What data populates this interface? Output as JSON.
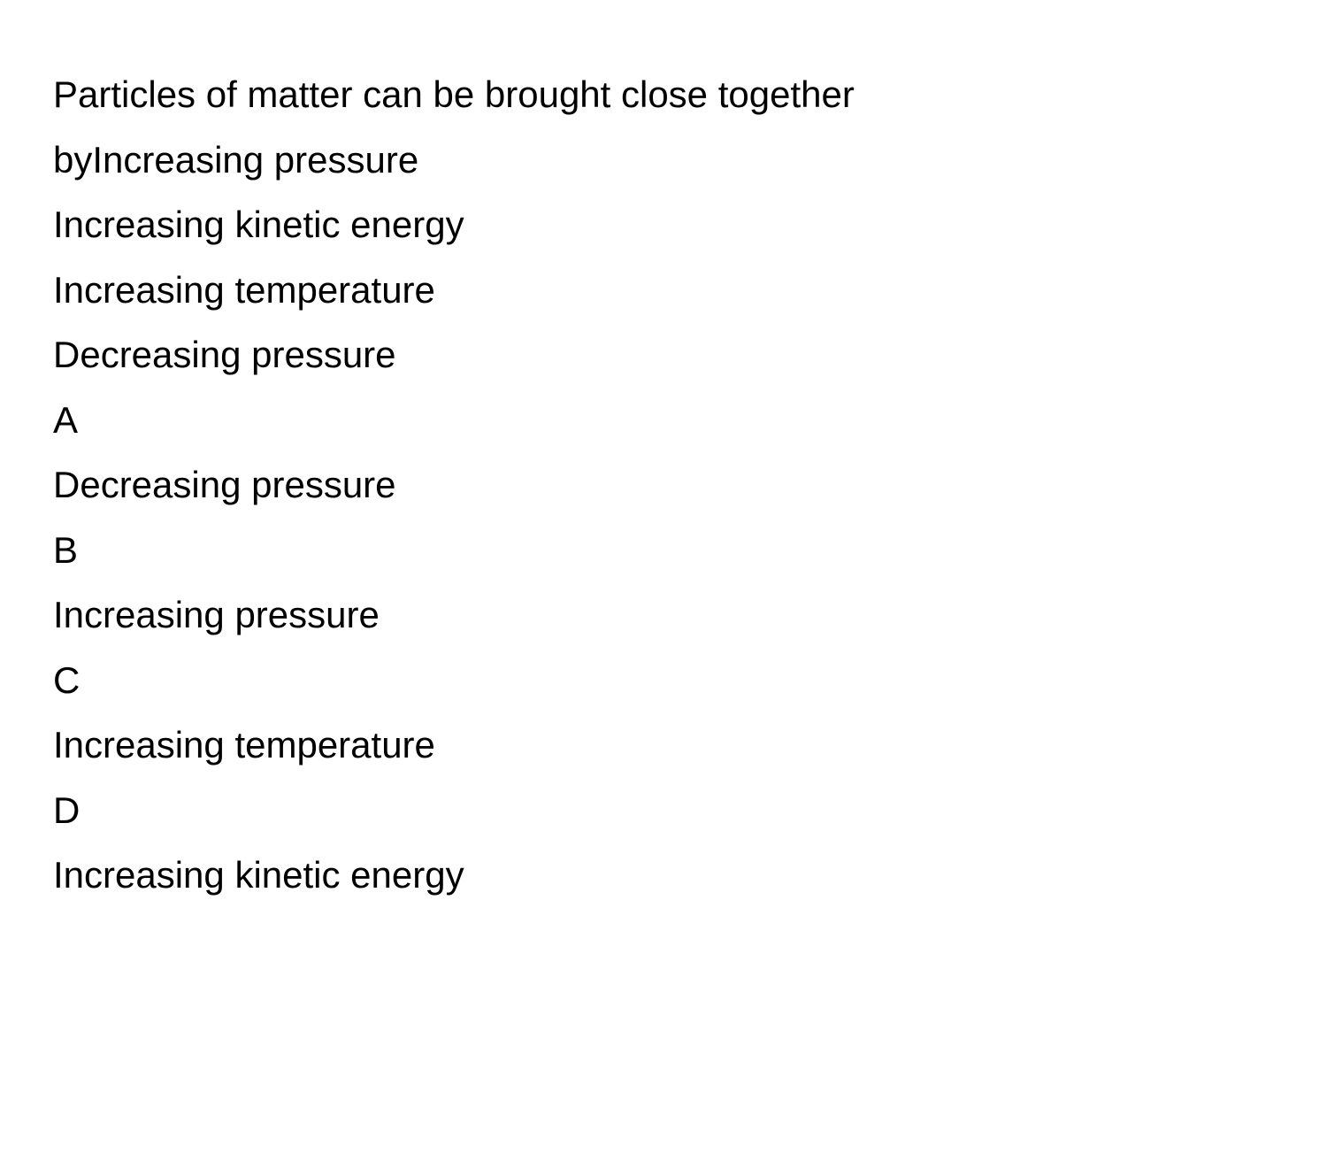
{
  "question": {
    "line1": "Particles of matter can be brought close together",
    "line2": "byIncreasing pressure",
    "line3": "Increasing kinetic energy",
    "line4": "Increasing temperature",
    "line5": "Decreasing pressure"
  },
  "options": {
    "a_label": "A",
    "a_text": "Decreasing pressure",
    "b_label": "B",
    "b_text": "Increasing pressure",
    "c_label": "C",
    "c_text": "Increasing temperature",
    "d_label": "D",
    "d_text": "Increasing kinetic energy"
  },
  "styling": {
    "background_color": "#ffffff",
    "text_color": "#000000",
    "font_size": 42,
    "line_height": 1.75,
    "font_weight": 400
  }
}
